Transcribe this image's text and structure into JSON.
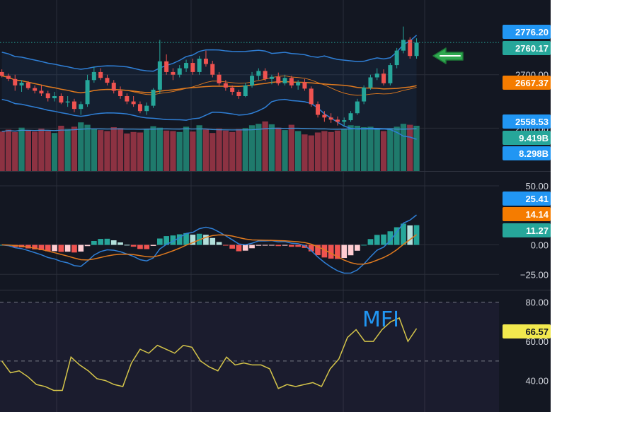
{
  "theme": {
    "background": "#131722",
    "grid": "#2a2e39",
    "axis_text": "#d1d4dc",
    "up": "#26a69a",
    "down": "#ef5350",
    "vol_up": "#1f7a6c",
    "vol_down": "#8c3242",
    "bollinger": "#2f7fd6",
    "sma": "#e07a1f",
    "volume_ma": "#3d8fd6",
    "mfi_line": "#d4c44a",
    "mfi_label": "#2196f3",
    "arrow": "#2ea84f"
  },
  "chart_data": [
    {
      "type": "candlestick",
      "pane": "price",
      "y_ticks": [
        "2700.00",
        "2600.00"
      ],
      "ylim": [
        2520,
        2800
      ],
      "price_badges": [
        {
          "label": "2776.20",
          "value": 2776.2,
          "color": "#2196f3"
        },
        {
          "label": "2760.17",
          "value": 2760.17,
          "color": "#26a69a"
        },
        {
          "label": "2667.37",
          "value": 2667.37,
          "color": "#f57c00"
        },
        {
          "label": "2558.53",
          "value": 2558.53,
          "color": "#2196f3"
        }
      ],
      "candles": [
        [
          2705,
          2710,
          2695,
          2698
        ],
        [
          2698,
          2702,
          2688,
          2692
        ],
        [
          2692,
          2700,
          2670,
          2680
        ],
        [
          2680,
          2690,
          2668,
          2685
        ],
        [
          2685,
          2688,
          2672,
          2675
        ],
        [
          2675,
          2680,
          2665,
          2670
        ],
        [
          2670,
          2680,
          2660,
          2665
        ],
        [
          2665,
          2670,
          2650,
          2656
        ],
        [
          2656,
          2668,
          2650,
          2660
        ],
        [
          2660,
          2665,
          2645,
          2648
        ],
        [
          2648,
          2660,
          2640,
          2650
        ],
        [
          2650,
          2655,
          2630,
          2636
        ],
        [
          2636,
          2650,
          2625,
          2645
        ],
        [
          2645,
          2700,
          2640,
          2690
        ],
        [
          2690,
          2715,
          2685,
          2705
        ],
        [
          2705,
          2712,
          2690,
          2694
        ],
        [
          2694,
          2700,
          2680,
          2685
        ],
        [
          2685,
          2690,
          2665,
          2670
        ],
        [
          2670,
          2678,
          2655,
          2660
        ],
        [
          2660,
          2665,
          2645,
          2650
        ],
        [
          2650,
          2660,
          2640,
          2645
        ],
        [
          2645,
          2650,
          2628,
          2632
        ],
        [
          2632,
          2648,
          2625,
          2642
        ],
        [
          2642,
          2675,
          2638,
          2672
        ],
        [
          2672,
          2765,
          2665,
          2725
        ],
        [
          2725,
          2738,
          2700,
          2705
        ],
        [
          2705,
          2712,
          2690,
          2700
        ],
        [
          2700,
          2718,
          2695,
          2712
        ],
        [
          2712,
          2728,
          2705,
          2722
        ],
        [
          2722,
          2730,
          2700,
          2705
        ],
        [
          2705,
          2735,
          2700,
          2730
        ],
        [
          2730,
          2745,
          2715,
          2720
        ],
        [
          2720,
          2726,
          2695,
          2700
        ],
        [
          2700,
          2705,
          2680,
          2684
        ],
        [
          2684,
          2690,
          2670,
          2676
        ],
        [
          2676,
          2680,
          2662,
          2668
        ],
        [
          2668,
          2672,
          2655,
          2660
        ],
        [
          2660,
          2685,
          2658,
          2680
        ],
        [
          2680,
          2705,
          2676,
          2698
        ],
        [
          2698,
          2712,
          2690,
          2707
        ],
        [
          2707,
          2712,
          2688,
          2692
        ],
        [
          2692,
          2700,
          2682,
          2696
        ],
        [
          2696,
          2704,
          2680,
          2684
        ],
        [
          2684,
          2700,
          2680,
          2694
        ],
        [
          2694,
          2698,
          2675,
          2680
        ],
        [
          2680,
          2690,
          2672,
          2686
        ],
        [
          2686,
          2692,
          2670,
          2674
        ],
        [
          2674,
          2678,
          2640,
          2645
        ],
        [
          2645,
          2650,
          2620,
          2625
        ],
        [
          2625,
          2632,
          2612,
          2620
        ],
        [
          2620,
          2628,
          2610,
          2616
        ],
        [
          2616,
          2622,
          2605,
          2612
        ],
        [
          2612,
          2620,
          2604,
          2615
        ],
        [
          2615,
          2632,
          2612,
          2628
        ],
        [
          2628,
          2655,
          2625,
          2650
        ],
        [
          2650,
          2680,
          2645,
          2676
        ],
        [
          2676,
          2700,
          2672,
          2695
        ],
        [
          2695,
          2712,
          2690,
          2702
        ],
        [
          2702,
          2710,
          2680,
          2684
        ],
        [
          2684,
          2722,
          2680,
          2718
        ],
        [
          2718,
          2750,
          2712,
          2745
        ],
        [
          2745,
          2790,
          2740,
          2765
        ],
        [
          2765,
          2770,
          2730,
          2735
        ],
        [
          2735,
          2768,
          2730,
          2760
        ]
      ],
      "volume": {
        "badges": [
          {
            "label": "9.419B",
            "value": 9.419,
            "color": "#26a69a"
          },
          {
            "label": "8.298B",
            "value": 8.298,
            "color": "#2196f3"
          }
        ],
        "values": [
          8.2,
          8.6,
          8.1,
          9.0,
          8.4,
          8.2,
          8.8,
          8.3,
          7.9,
          9.4,
          8.7,
          9.2,
          10.1,
          9.6,
          8.8,
          8.5,
          8.3,
          9.1,
          8.9,
          7.8,
          8.1,
          8.0,
          8.6,
          9.3,
          9.0,
          8.4,
          8.3,
          8.1,
          9.2,
          8.2,
          9.5,
          8.6,
          7.9,
          8.8,
          8.4,
          8.1,
          8.7,
          8.9,
          9.5,
          9.8,
          10.3,
          9.7,
          9.0,
          8.5,
          9.6,
          8.3,
          7.6,
          7.4,
          8.0,
          8.3,
          8.1,
          8.4,
          8.7,
          9.5,
          9.4,
          9.1,
          9.2,
          8.8,
          8.3,
          8.9,
          9.2,
          9.8,
          9.6,
          9.4
        ]
      }
    },
    {
      "type": "histogram",
      "pane": "macd",
      "y_ticks": [
        "50.00",
        "0.00",
        "−25.00"
      ],
      "ylim": [
        -38,
        62
      ],
      "badges": [
        {
          "label": "25.41",
          "value": 25.41,
          "color": "#2196f3"
        },
        {
          "label": "14.14",
          "value": 14.14,
          "color": "#f57c00"
        },
        {
          "label": "11.27",
          "value": 11.27,
          "color": "#26a69a"
        }
      ]
    },
    {
      "type": "line",
      "pane": "mfi",
      "title": "MFI",
      "y_ticks": [
        "80.00",
        "60.00",
        "40.00"
      ],
      "ylim": [
        24,
        86
      ],
      "badge": {
        "label": "66.57",
        "value": 66.57,
        "color": "#f2e94e"
      },
      "values": [
        50,
        44,
        45,
        42,
        38,
        37,
        35,
        35,
        52,
        48,
        45,
        41,
        40,
        38,
        37,
        49,
        56,
        54,
        58,
        56,
        54,
        58,
        57,
        50,
        47,
        45,
        52,
        48,
        49,
        48,
        48,
        46,
        36,
        38,
        37,
        38,
        39,
        37,
        46,
        51,
        62,
        66,
        60,
        60,
        66,
        70,
        72,
        60,
        66.57
      ]
    }
  ]
}
